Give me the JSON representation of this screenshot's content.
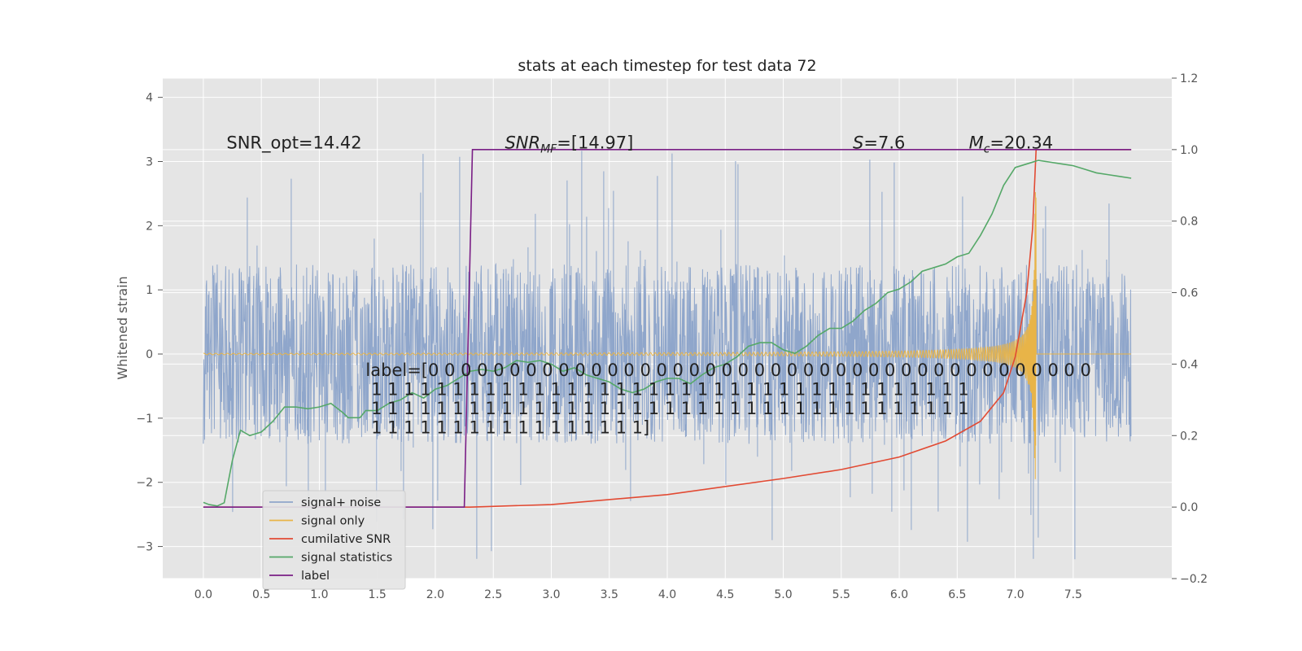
{
  "chart_data": {
    "type": "line",
    "title": "stats at each timestep for test data 72",
    "ylabel": "Whitened strain",
    "xlim": [
      -0.35,
      8.35
    ],
    "ylim": [
      -3.5,
      4.3
    ],
    "y2lim": [
      -0.2,
      1.2
    ],
    "grid": true,
    "legend_position": "lower-left",
    "xticks": [
      0.0,
      0.5,
      1.0,
      1.5,
      2.0,
      2.5,
      3.0,
      3.5,
      4.0,
      4.5,
      5.0,
      5.5,
      6.0,
      6.5,
      7.0,
      7.5
    ],
    "xtick_labels": [
      "0.0",
      "0.5",
      "1.0",
      "1.5",
      "2.0",
      "2.5",
      "3.0",
      "3.5",
      "4.0",
      "4.5",
      "5.0",
      "5.5",
      "6.0",
      "6.5",
      "7.0",
      "7.5"
    ],
    "yticks": [
      4,
      3,
      2,
      1,
      0,
      -1,
      -2,
      -3
    ],
    "ytick_labels": [
      "4",
      "3",
      "2",
      "1",
      "0",
      "−1",
      "−2",
      "−3"
    ],
    "y2ticks": [
      1.2,
      1.0,
      0.8,
      0.6,
      0.4,
      0.2,
      0.0,
      -0.2
    ],
    "y2tick_labels": [
      "1.2",
      "1.0",
      "0.8",
      "0.6",
      "0.4",
      "0.2",
      "0.0",
      "−0.2"
    ],
    "annotations": [
      {
        "text": "SNR_opt=14.42",
        "x": 0.2,
        "y": 3.2
      },
      {
        "text": "SNR_MF=[14.97]",
        "x": 2.6,
        "y": 3.2
      },
      {
        "text": "S=7.6",
        "x": 5.6,
        "y": 3.2
      },
      {
        "text": "M_c=20.34",
        "x": 6.6,
        "y": 3.2
      }
    ],
    "label_text": "label=[0 0 0 0 0 0 0 0 0 0 0 0 0 0 0 0 0 0 0 0 0 0 0 0 0 0 0 0 0 0 0 0 0 0 0 0 0 0 0 0 0\n 1 1 1 1 1 1 1 1 1 1 1 1 1 1 1 1 1 1 1 1 1 1 1 1 1 1 1 1 1 1 1 1 1 1 1 1 1\n 1 1 1 1 1 1 1 1 1 1 1 1 1 1 1 1 1 1 1 1 1 1 1 1 1 1 1 1 1 1 1 1 1 1 1 1 1\n 1 1 1 1 1 1 1 1 1 1 1 1 1 1 1 1 1]",
    "series": [
      {
        "name": "signal+ noise",
        "axis": "left",
        "color": "#8fa6cb",
        "noise_envelope": 1.4,
        "duration": 8.0
      },
      {
        "name": "signal only",
        "axis": "left",
        "color": "#e8b448",
        "merger_time": 7.18,
        "peak_amplitude": 2.6
      },
      {
        "name": "cumilative SNR",
        "axis": "right",
        "color": "#e24a33",
        "x": [
          0.0,
          1.0,
          2.0,
          2.3,
          3.0,
          4.0,
          5.0,
          5.5,
          6.0,
          6.4,
          6.7,
          6.9,
          7.0,
          7.1,
          7.15,
          7.18,
          8.0
        ],
        "y": [
          0.0,
          0.0,
          0.0,
          0.0,
          0.007,
          0.035,
          0.08,
          0.105,
          0.14,
          0.185,
          0.24,
          0.32,
          0.42,
          0.6,
          0.78,
          1.0,
          1.0
        ]
      },
      {
        "name": "signal statistics",
        "axis": "right",
        "color": "#55a868",
        "x": [
          0.0,
          0.05,
          0.12,
          0.18,
          0.25,
          0.32,
          0.4,
          0.5,
          0.6,
          0.7,
          0.8,
          0.9,
          1.0,
          1.1,
          1.2,
          1.25,
          1.35,
          1.4,
          1.5,
          1.6,
          1.7,
          1.8,
          1.9,
          2.0,
          2.1,
          2.2,
          2.3,
          2.4,
          2.5,
          2.6,
          2.7,
          2.8,
          2.9,
          3.0,
          3.1,
          3.2,
          3.3,
          3.4,
          3.5,
          3.6,
          3.7,
          3.8,
          3.9,
          4.0,
          4.1,
          4.2,
          4.3,
          4.4,
          4.5,
          4.6,
          4.7,
          4.8,
          4.9,
          5.0,
          5.1,
          5.2,
          5.3,
          5.4,
          5.5,
          5.6,
          5.7,
          5.8,
          5.9,
          6.0,
          6.1,
          6.2,
          6.3,
          6.4,
          6.5,
          6.6,
          6.7,
          6.8,
          6.9,
          7.0,
          7.1,
          7.2,
          7.3,
          7.4,
          7.5,
          7.6,
          7.7,
          7.8,
          7.9,
          8.0
        ],
        "y": [
          0.013,
          0.007,
          0.003,
          0.012,
          0.13,
          0.215,
          0.2,
          0.21,
          0.24,
          0.28,
          0.28,
          0.275,
          0.28,
          0.29,
          0.265,
          0.25,
          0.25,
          0.27,
          0.27,
          0.29,
          0.3,
          0.32,
          0.305,
          0.33,
          0.34,
          0.36,
          0.38,
          0.385,
          0.38,
          0.39,
          0.41,
          0.405,
          0.41,
          0.4,
          0.38,
          0.39,
          0.37,
          0.36,
          0.35,
          0.33,
          0.32,
          0.33,
          0.35,
          0.36,
          0.36,
          0.345,
          0.37,
          0.39,
          0.4,
          0.42,
          0.45,
          0.46,
          0.46,
          0.44,
          0.43,
          0.45,
          0.48,
          0.5,
          0.5,
          0.52,
          0.55,
          0.57,
          0.6,
          0.61,
          0.63,
          0.66,
          0.67,
          0.68,
          0.7,
          0.71,
          0.76,
          0.82,
          0.9,
          0.95,
          0.96,
          0.97,
          0.965,
          0.96,
          0.955,
          0.945,
          0.935,
          0.93,
          0.925,
          0.92
        ]
      },
      {
        "name": "label",
        "axis": "right",
        "color": "#7a1f86",
        "x": [
          0.0,
          2.25,
          2.32,
          8.0
        ],
        "y": [
          0.0,
          0.0,
          1.0,
          1.0
        ]
      }
    ]
  }
}
